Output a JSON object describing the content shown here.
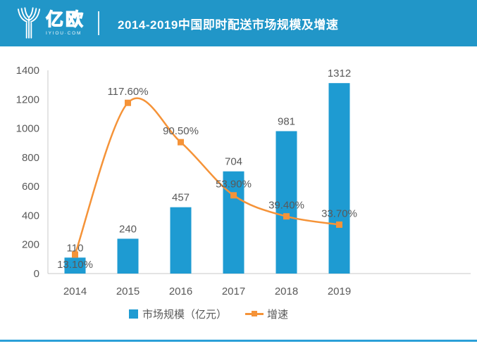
{
  "header": {
    "brand": "亿欧",
    "brand_sub": "IYIOU·COM",
    "title": "2014-2019中国即时配送市场规模及增速"
  },
  "colors": {
    "header_bg": "#2196C8",
    "bar": "#1E9BD2",
    "line": "#F59338",
    "axis": "#C9C9C9",
    "text_gray": "#595959",
    "bottom_rule": "#2B9FD8"
  },
  "legend": {
    "bar_label": "市场规模（亿元）",
    "line_label": "增速"
  },
  "chart_data": {
    "type": "bar",
    "subtype": "bar+line combo",
    "title": "2014-2019中国即时配送市场规模及增速",
    "categories": [
      "2014",
      "2015",
      "2016",
      "2017",
      "2018",
      "2019"
    ],
    "series": [
      {
        "name": "市场规模（亿元）",
        "type": "bar",
        "values": [
          110,
          240,
          457,
          704,
          981,
          1312
        ],
        "labels": [
          "110",
          "240",
          "457",
          "704",
          "981",
          "1312"
        ]
      },
      {
        "name": "增速",
        "type": "line",
        "values_percent": [
          13.1,
          117.6,
          90.5,
          53.9,
          39.4,
          33.7
        ],
        "labels": [
          "13.10%",
          "117.60%",
          "90.50%",
          "53.90%",
          "39.40%",
          "33.70%"
        ]
      }
    ],
    "xlabel": "",
    "ylabel": "",
    "ylim": [
      0,
      1400
    ],
    "ytick_step": 200,
    "yticks": [
      "0",
      "200",
      "400",
      "600",
      "800",
      "1000",
      "1200",
      "1400"
    ],
    "secondary_axis_scale": 10,
    "grid": false,
    "legend_position": "bottom"
  }
}
